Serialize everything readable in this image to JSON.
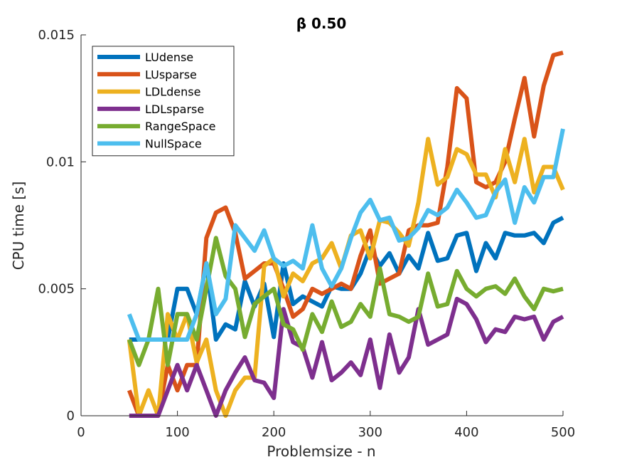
{
  "chart_data": {
    "type": "line",
    "title": "β 0.50",
    "xlabel": "Problemsize - n",
    "ylabel": "CPU time [s]",
    "xlim": [
      0,
      500
    ],
    "ylim": [
      0,
      0.015
    ],
    "xticks": [
      0,
      100,
      200,
      300,
      400,
      500
    ],
    "xtick_labels": [
      "0",
      "100",
      "200",
      "300",
      "400",
      "500"
    ],
    "yticks": [
      0,
      0.005,
      0.01,
      0.015
    ],
    "ytick_labels": [
      "0",
      "0.005",
      "0.01",
      "0.015"
    ],
    "grid": false,
    "legend_position": "top-left",
    "x": [
      50,
      60,
      70,
      80,
      90,
      100,
      110,
      120,
      130,
      140,
      150,
      160,
      170,
      180,
      190,
      200,
      210,
      220,
      230,
      240,
      250,
      260,
      270,
      280,
      290,
      300,
      310,
      320,
      330,
      340,
      350,
      360,
      370,
      380,
      390,
      400,
      410,
      420,
      430,
      440,
      450,
      460,
      470,
      480,
      490,
      500
    ],
    "series": [
      {
        "name": "LUdense",
        "color": "#0072BD",
        "values": [
          0.003,
          0.003,
          0.003,
          0.003,
          0.003,
          0.005,
          0.005,
          0.004,
          0.006,
          0.003,
          0.0036,
          0.0034,
          0.0053,
          0.0043,
          0.0052,
          0.0031,
          0.006,
          0.0044,
          0.0047,
          0.0045,
          0.0043,
          0.0051,
          0.005,
          0.005,
          0.0056,
          0.0066,
          0.0059,
          0.0064,
          0.0056,
          0.0063,
          0.0058,
          0.0072,
          0.0061,
          0.0062,
          0.0071,
          0.0072,
          0.0057,
          0.0068,
          0.0062,
          0.0072,
          0.0071,
          0.0071,
          0.0072,
          0.0068,
          0.0076,
          0.0078
        ]
      },
      {
        "name": "LUsparse",
        "color": "#D95319",
        "values": [
          0.001,
          0.0,
          0.0,
          0.0,
          0.002,
          0.001,
          0.002,
          0.002,
          0.007,
          0.008,
          0.0082,
          0.0072,
          0.0054,
          0.0057,
          0.006,
          0.006,
          0.005,
          0.0039,
          0.0042,
          0.005,
          0.0048,
          0.005,
          0.0052,
          0.005,
          0.0063,
          0.0073,
          0.0052,
          0.0054,
          0.0056,
          0.0073,
          0.0075,
          0.0075,
          0.0076,
          0.0098,
          0.0129,
          0.0125,
          0.0092,
          0.009,
          0.0092,
          0.01,
          0.0117,
          0.0133,
          0.011,
          0.013,
          0.0142,
          0.0143
        ]
      },
      {
        "name": "LDLdense",
        "color": "#EDB120",
        "values": [
          0.003,
          0.0,
          0.001,
          0.0,
          0.004,
          0.003,
          0.004,
          0.0021,
          0.003,
          0.001,
          0.0,
          0.001,
          0.0015,
          0.0015,
          0.0059,
          0.0062,
          0.0047,
          0.0056,
          0.0053,
          0.006,
          0.0062,
          0.0068,
          0.0058,
          0.0071,
          0.0073,
          0.0062,
          0.0077,
          0.0076,
          0.0072,
          0.0067,
          0.0084,
          0.0109,
          0.0091,
          0.0094,
          0.0105,
          0.0103,
          0.0095,
          0.0095,
          0.0086,
          0.0105,
          0.0092,
          0.0109,
          0.0088,
          0.0098,
          0.0098,
          0.0089
        ]
      },
      {
        "name": "LDLsparse",
        "color": "#7E2F8E",
        "values": [
          0.0,
          0.0,
          0.0,
          0.0,
          0.001,
          0.002,
          0.001,
          0.002,
          0.001,
          0.0,
          0.001,
          0.0017,
          0.0023,
          0.0014,
          0.0013,
          0.0007,
          0.0042,
          0.0029,
          0.0027,
          0.0015,
          0.0029,
          0.0014,
          0.0017,
          0.0021,
          0.0016,
          0.003,
          0.0011,
          0.0032,
          0.0017,
          0.0023,
          0.0042,
          0.0028,
          0.003,
          0.0032,
          0.0046,
          0.0044,
          0.0038,
          0.0029,
          0.0034,
          0.0033,
          0.0039,
          0.0038,
          0.0039,
          0.003,
          0.0037,
          0.0039
        ]
      },
      {
        "name": "RangeSpace",
        "color": "#77AC30",
        "values": [
          0.003,
          0.002,
          0.003,
          0.005,
          0.002,
          0.004,
          0.004,
          0.003,
          0.005,
          0.007,
          0.0055,
          0.005,
          0.0031,
          0.0044,
          0.0047,
          0.005,
          0.0036,
          0.0034,
          0.0026,
          0.004,
          0.0033,
          0.0045,
          0.0035,
          0.0037,
          0.0044,
          0.0039,
          0.0058,
          0.004,
          0.0039,
          0.0037,
          0.0039,
          0.0056,
          0.0043,
          0.0044,
          0.0057,
          0.005,
          0.0047,
          0.005,
          0.0051,
          0.0048,
          0.0054,
          0.0047,
          0.0042,
          0.005,
          0.0049,
          0.005
        ]
      },
      {
        "name": "NullSpace",
        "color": "#4DBEEE",
        "values": [
          0.004,
          0.003,
          0.003,
          0.003,
          0.003,
          0.003,
          0.003,
          0.004,
          0.006,
          0.004,
          0.0046,
          0.0075,
          0.007,
          0.0065,
          0.0073,
          0.0062,
          0.0059,
          0.0061,
          0.0058,
          0.0075,
          0.0058,
          0.0051,
          0.0058,
          0.007,
          0.008,
          0.0085,
          0.0077,
          0.0078,
          0.0069,
          0.007,
          0.0074,
          0.0081,
          0.0079,
          0.0082,
          0.0089,
          0.0084,
          0.0078,
          0.0079,
          0.0088,
          0.0093,
          0.0076,
          0.009,
          0.0084,
          0.0094,
          0.0094,
          0.0113
        ]
      }
    ]
  }
}
